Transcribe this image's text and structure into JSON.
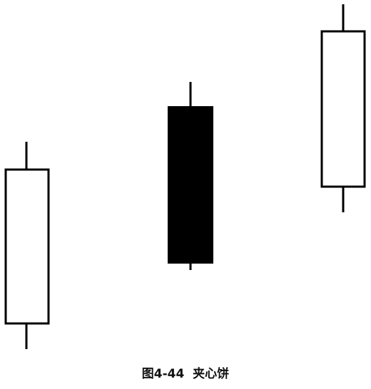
{
  "caption": "图4-44  夹心饼"
}
